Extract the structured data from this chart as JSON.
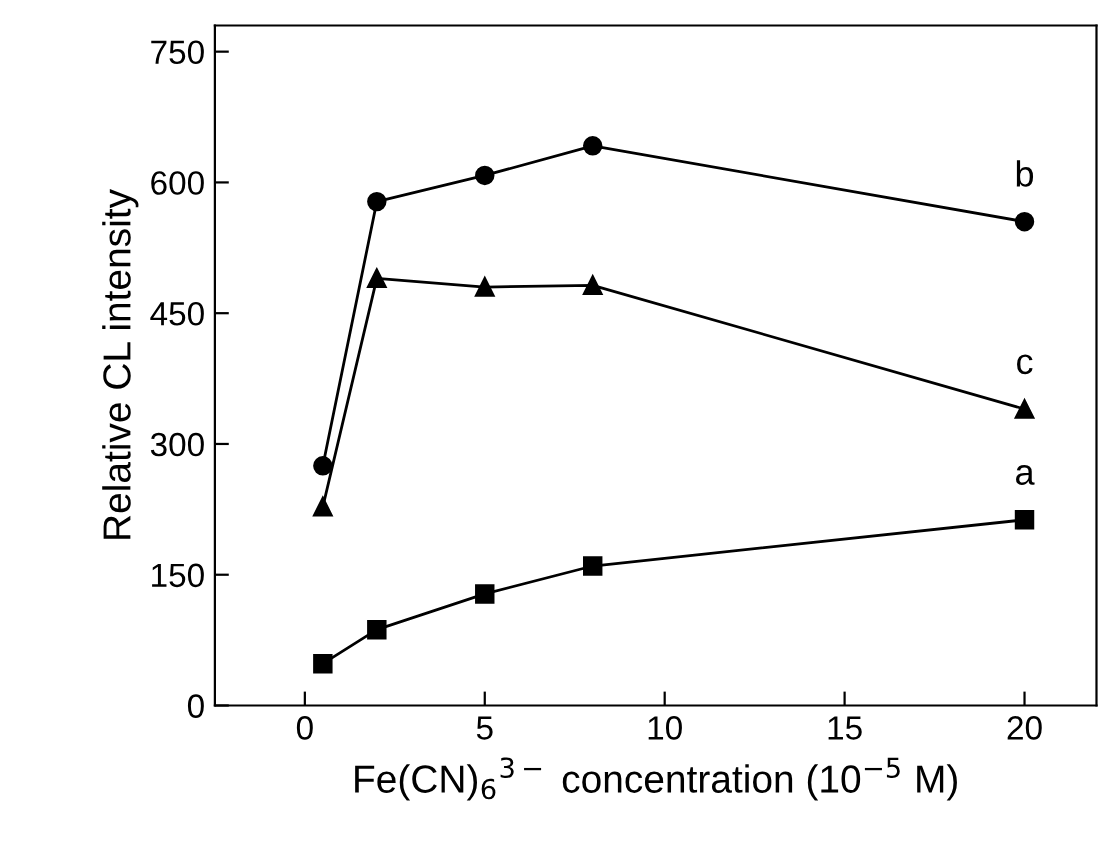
{
  "chart_data": {
    "type": "line",
    "xlabel": "Fe(CN)$_{6}$$^{3−}$ concentration (10$^{−5}$ M)",
    "ylabel": "Relative CL intensity",
    "x": [
      0.5,
      2,
      5,
      8,
      20
    ],
    "series": [
      {
        "name": "a",
        "color": "#000000",
        "marker": "square",
        "values": [
          48,
          87,
          128,
          160,
          213
        ]
      },
      {
        "name": "b",
        "color": "#000000",
        "marker": "circle",
        "values": [
          275,
          578,
          608,
          642,
          555
        ]
      },
      {
        "name": "c",
        "color": "#000000",
        "marker": "triangle",
        "values": [
          228,
          490,
          480,
          482,
          340
        ]
      }
    ],
    "xlim": [
      -2.5,
      22
    ],
    "ylim": [
      0,
      780
    ],
    "xticks": [
      0,
      5,
      10,
      15,
      20
    ],
    "yticks": [
      0,
      150,
      300,
      450,
      600,
      750
    ],
    "grid": false,
    "legend": false,
    "line_style": "solid"
  }
}
